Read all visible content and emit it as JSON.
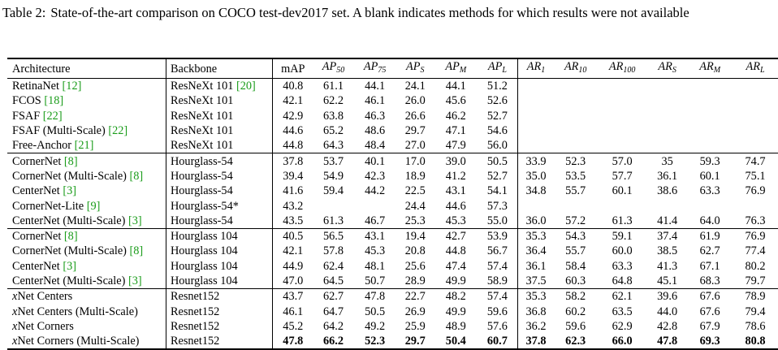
{
  "caption": {
    "label": "Table 2:",
    "text": "State-of-the-art comparison on COCO test-dev2017 set. A blank indicates methods for which results were not available"
  },
  "headers": {
    "architecture": "Architecture",
    "backbone": "Backbone",
    "map": "mAP",
    "ap_base": "AP",
    "ar_base": "AR",
    "ap_subs": [
      "50",
      "75",
      "S",
      "M",
      "L"
    ],
    "ar_subs": [
      "1",
      "10",
      "100",
      "S",
      "M",
      "L"
    ]
  },
  "groups": [
    [
      {
        "arch": "RetinaNet",
        "arch_cite": "[12]",
        "backbone": "ResNeXt 101",
        "bb_cite": "[20]",
        "values": [
          "40.8",
          "61.1",
          "44.1",
          "24.1",
          "44.1",
          "51.2",
          "",
          "",
          "",
          "",
          "",
          ""
        ]
      },
      {
        "arch": "FCOS",
        "arch_cite": "[18]",
        "backbone": "ResNeXt 101",
        "bb_cite": "",
        "values": [
          "42.1",
          "62.2",
          "46.1",
          "26.0",
          "45.6",
          "52.6",
          "",
          "",
          "",
          "",
          "",
          ""
        ]
      },
      {
        "arch": "FSAF",
        "arch_cite": "[22]",
        "backbone": "ResNeXt 101",
        "bb_cite": "",
        "values": [
          "42.9",
          "63.8",
          "46.3",
          "26.6",
          "46.2",
          "52.7",
          "",
          "",
          "",
          "",
          "",
          ""
        ]
      },
      {
        "arch": "FSAF (Multi-Scale)",
        "arch_cite": "[22]",
        "backbone": "ResNeXt 101",
        "bb_cite": "",
        "values": [
          "44.6",
          "65.2",
          "48.6",
          "29.7",
          "47.1",
          "54.6",
          "",
          "",
          "",
          "",
          "",
          ""
        ]
      },
      {
        "arch": "Free-Anchor",
        "arch_cite": "[21]",
        "backbone": "ResNeXt 101",
        "bb_cite": "",
        "values": [
          "44.8",
          "64.3",
          "48.4",
          "27.0",
          "47.9",
          "56.0",
          "",
          "",
          "",
          "",
          "",
          ""
        ]
      }
    ],
    [
      {
        "arch": "CornerNet",
        "arch_cite": "[8]",
        "backbone": "Hourglass-54",
        "bb_cite": "",
        "values": [
          "37.8",
          "53.7",
          "40.1",
          "17.0",
          "39.0",
          "50.5",
          "33.9",
          "52.3",
          "57.0",
          "35",
          "59.3",
          "74.7"
        ]
      },
      {
        "arch": "CornerNet (Multi-Scale)",
        "arch_cite": "[8]",
        "backbone": "Hourglass-54",
        "bb_cite": "",
        "values": [
          "39.4",
          "54.9",
          "42.3",
          "18.9",
          "41.2",
          "52.7",
          "35.0",
          "53.5",
          "57.7",
          "36.1",
          "60.1",
          "75.1"
        ]
      },
      {
        "arch": "CenterNet",
        "arch_cite": "[3]",
        "backbone": "Hourglass-54",
        "bb_cite": "",
        "values": [
          "41.6",
          "59.4",
          "44.2",
          "22.5",
          "43.1",
          "54.1",
          "34.8",
          "55.7",
          "60.1",
          "38.6",
          "63.3",
          "76.9"
        ]
      },
      {
        "arch": "CornerNet-Lite",
        "arch_cite": "[9]",
        "backbone": "Hourglass-54*",
        "bb_cite": "",
        "values": [
          "43.2",
          "",
          "",
          "24.4",
          "44.6",
          "57.3",
          "",
          "",
          "",
          "",
          "",
          ""
        ]
      },
      {
        "arch": "CenterNet (Multi-Scale)",
        "arch_cite": "[3]",
        "backbone": "Hourglass-54",
        "bb_cite": "",
        "values": [
          "43.5",
          "61.3",
          "46.7",
          "25.3",
          "45.3",
          "55.0",
          "36.0",
          "57.2",
          "61.3",
          "41.4",
          "64.0",
          "76.3"
        ]
      }
    ],
    [
      {
        "arch": "CornerNet",
        "arch_cite": "[8]",
        "backbone": "Hourglass 104",
        "bb_cite": "",
        "values": [
          "40.5",
          "56.5",
          "43.1",
          "19.4",
          "42.7",
          "53.9",
          "35.3",
          "54.3",
          "59.1",
          "37.4",
          "61.9",
          "76.9"
        ]
      },
      {
        "arch": "CornerNet (Multi-Scale)",
        "arch_cite": "[8]",
        "backbone": "Hourglass 104",
        "bb_cite": "",
        "values": [
          "42.1",
          "57.8",
          "45.3",
          "20.8",
          "44.8",
          "56.7",
          "36.4",
          "55.7",
          "60.0",
          "38.5",
          "62.7",
          "77.4"
        ]
      },
      {
        "arch": "CenterNet",
        "arch_cite": "[3]",
        "backbone": "Hourglass 104",
        "bb_cite": "",
        "values": [
          "44.9",
          "62.4",
          "48.1",
          "25.6",
          "47.4",
          "57.4",
          "36.1",
          "58.4",
          "63.3",
          "41.3",
          "67.1",
          "80.2"
        ]
      },
      {
        "arch": "CenterNet (Multi-Scale)",
        "arch_cite": "[3]",
        "backbone": "Hourglass 104",
        "bb_cite": "",
        "values": [
          "47.0",
          "64.5",
          "50.7",
          "28.9",
          "49.9",
          "58.9",
          "37.5",
          "60.3",
          "64.8",
          "45.1",
          "68.3",
          "79.7"
        ]
      }
    ],
    [
      {
        "arch_prefix": "x",
        "arch": "Net Centers",
        "arch_cite": "",
        "backbone": "Resnet152",
        "bb_cite": "",
        "values": [
          "43.7",
          "62.7",
          "47.8",
          "22.7",
          "48.2",
          "57.4",
          "35.3",
          "58.2",
          "62.1",
          "39.6",
          "67.6",
          "78.9"
        ]
      },
      {
        "arch_prefix": "x",
        "arch": "Net Centers (Multi-Scale)",
        "arch_cite": "",
        "backbone": "Resnet152",
        "bb_cite": "",
        "values": [
          "46.1",
          "64.7",
          "50.5",
          "26.9",
          "49.9",
          "59.6",
          "36.8",
          "60.2",
          "63.5",
          "44.0",
          "67.6",
          "79.4"
        ]
      },
      {
        "arch_prefix": "x",
        "arch": "Net Corners",
        "arch_cite": "",
        "backbone": "Resnet152",
        "bb_cite": "",
        "values": [
          "45.2",
          "64.2",
          "49.2",
          "25.9",
          "48.9",
          "57.6",
          "36.2",
          "59.6",
          "62.9",
          "42.8",
          "67.9",
          "78.6"
        ]
      },
      {
        "arch_prefix": "x",
        "arch": "Net Corners (Multi-Scale)",
        "arch_cite": "",
        "backbone": "Resnet152",
        "bb_cite": "",
        "bold": true,
        "values": [
          "47.8",
          "66.2",
          "52.3",
          "29.7",
          "50.4",
          "60.7",
          "37.8",
          "62.3",
          "66.0",
          "47.8",
          "69.3",
          "80.8"
        ]
      }
    ]
  ]
}
